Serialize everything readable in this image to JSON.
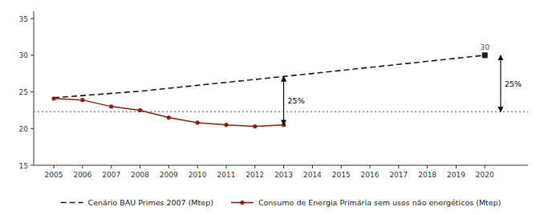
{
  "chart_data": {
    "type": "line",
    "series": [
      {
        "name": "Cenário BAU Primes 2007 (Mtep)",
        "color": "#1a1a1a",
        "line_style": "dashed",
        "marker": "none",
        "x": [
          2005,
          2006,
          2007,
          2008,
          2009,
          2010,
          2011,
          2012,
          2013,
          2020
        ],
        "values": [
          24.2,
          24.5,
          24.8,
          25.1,
          25.5,
          25.9,
          26.3,
          26.7,
          27.1,
          30.0
        ]
      },
      {
        "name": "Consumo de Energia Primária sem usos não energéticos (Mtep)",
        "color": "#8b1a1a",
        "line_style": "solid",
        "marker": "circle",
        "x": [
          2005,
          2006,
          2007,
          2008,
          2009,
          2010,
          2011,
          2012,
          2013
        ],
        "values": [
          24.1,
          23.9,
          23.0,
          22.5,
          21.5,
          20.8,
          20.5,
          20.3,
          20.5
        ]
      }
    ],
    "reference_lines": [
      {
        "y": 22.3,
        "color": "#888888",
        "line_style": "dotted"
      }
    ],
    "annotations": [
      {
        "type": "arrow",
        "x": 2013.0,
        "y_start": 27.1,
        "y_end": 20.5,
        "text": "25%"
      },
      {
        "type": "arrow",
        "x": 2020.55,
        "y_start": 30.0,
        "y_end": 22.3,
        "text": "25%"
      },
      {
        "type": "point",
        "x": 2020,
        "y": 30.0,
        "text": "30",
        "marker": "square",
        "color": "#1a1a1a",
        "text_color": "#555555"
      }
    ],
    "xlim": [
      2004.3,
      2021.5
    ],
    "ylim": [
      15,
      36
    ],
    "xticks": [
      2005,
      2006,
      2007,
      2008,
      2009,
      2010,
      2011,
      2012,
      2013,
      2014,
      2015,
      2016,
      2017,
      2018,
      2019,
      2020
    ],
    "yticks": [
      15,
      20,
      25,
      30,
      35
    ],
    "grid": false,
    "legend": "bottom"
  }
}
